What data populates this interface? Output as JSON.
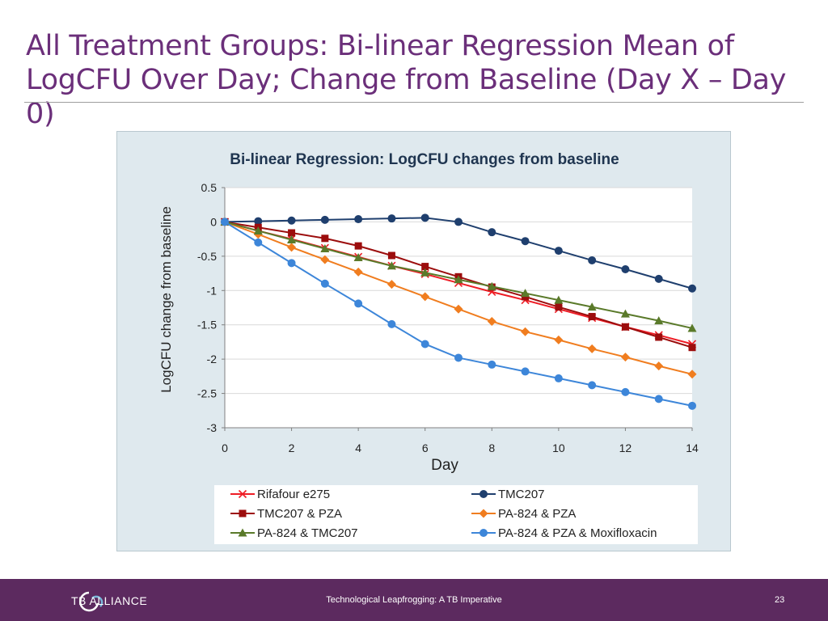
{
  "slide": {
    "title": "All Treatment Groups: Bi-linear Regression Mean of LogCFU Over Day; Change from Baseline (Day X – Day 0)"
  },
  "footer": {
    "logo_text": "TB ALLIANCE",
    "caption": "Technological Leapfrogging:  A TB Imperative",
    "page_number": "23"
  },
  "chart_data": {
    "type": "line",
    "title": "Bi-linear Regression: LogCFU changes from baseline",
    "xlabel": "Day",
    "ylabel": "LogCFU change from baseline",
    "xlim": [
      0,
      14
    ],
    "ylim": [
      -3,
      0.5
    ],
    "x_ticks": [
      "0",
      "2",
      "4",
      "6",
      "8",
      "10",
      "12",
      "14"
    ],
    "y_ticks": [
      "0.5",
      "0",
      "-0.5",
      "-1",
      "-1.5",
      "-2",
      "-2.5",
      "-3"
    ],
    "grid": true,
    "legend_position": "bottom",
    "x": [
      0,
      1,
      2,
      3,
      4,
      5,
      6,
      7,
      8,
      9,
      10,
      11,
      12,
      13,
      14
    ],
    "series": [
      {
        "name": "Rifafour e275",
        "color": "#ee1c25",
        "marker": "x",
        "values": [
          0,
          -0.13,
          -0.25,
          -0.38,
          -0.51,
          -0.64,
          -0.76,
          -0.89,
          -1.02,
          -1.14,
          -1.27,
          -1.4,
          -1.53,
          -1.65,
          -1.78
        ]
      },
      {
        "name": "TMC207",
        "color": "#1f3f6e",
        "marker": "circle",
        "values": [
          0,
          0.01,
          0.02,
          0.03,
          0.04,
          0.05,
          0.06,
          0.0,
          -0.15,
          -0.28,
          -0.42,
          -0.56,
          -0.69,
          -0.83,
          -0.97
        ]
      },
      {
        "name": "TMC207 & PZA",
        "color": "#9c0d0d",
        "marker": "square",
        "values": [
          0,
          -0.08,
          -0.16,
          -0.24,
          -0.35,
          -0.49,
          -0.65,
          -0.8,
          -0.95,
          -1.09,
          -1.24,
          -1.38,
          -1.53,
          -1.68,
          -1.83
        ]
      },
      {
        "name": "PA-824 & PZA",
        "color": "#f07d1f",
        "marker": "diamond",
        "values": [
          0,
          -0.18,
          -0.37,
          -0.55,
          -0.73,
          -0.91,
          -1.09,
          -1.27,
          -1.45,
          -1.6,
          -1.72,
          -1.85,
          -1.97,
          -2.1,
          -2.22
        ]
      },
      {
        "name": "PA-824 & TMC207",
        "color": "#5a7a2a",
        "marker": "triangle",
        "values": [
          0,
          -0.13,
          -0.26,
          -0.39,
          -0.52,
          -0.64,
          -0.74,
          -0.84,
          -0.94,
          -1.04,
          -1.14,
          -1.24,
          -1.34,
          -1.44,
          -1.55
        ]
      },
      {
        "name": "PA-824 & PZA & Moxifloxacin",
        "color": "#3d86d9",
        "marker": "circle",
        "values": [
          0,
          -0.3,
          -0.6,
          -0.9,
          -1.19,
          -1.49,
          -1.78,
          -1.98,
          -2.08,
          -2.18,
          -2.28,
          -2.38,
          -2.48,
          -2.58,
          -2.68
        ]
      }
    ],
    "legend_layout": [
      [
        "Rifafour e275",
        "TMC207"
      ],
      [
        "TMC207 & PZA",
        "PA-824 & PZA"
      ],
      [
        "PA-824 & TMC207",
        "PA-824 & PZA & Moxifloxacin"
      ]
    ]
  }
}
